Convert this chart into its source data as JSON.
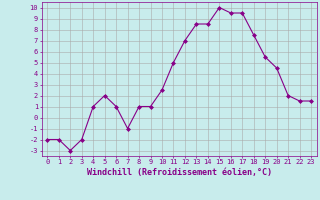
{
  "x": [
    0,
    1,
    2,
    3,
    4,
    5,
    6,
    7,
    8,
    9,
    10,
    11,
    12,
    13,
    14,
    15,
    16,
    17,
    18,
    19,
    20,
    21,
    22,
    23
  ],
  "y": [
    -2,
    -2,
    -3,
    -2,
    1,
    2,
    1,
    -1,
    1,
    1,
    2.5,
    5,
    7,
    8.5,
    8.5,
    10,
    9.5,
    9.5,
    7.5,
    5.5,
    4.5,
    2,
    1.5,
    1.5
  ],
  "line_color": "#880088",
  "marker": "D",
  "marker_size": 2,
  "background_color": "#c8ecec",
  "grid_color": "#aaaaaa",
  "xlabel": "Windchill (Refroidissement éolien,°C)",
  "xlabel_color": "#880088",
  "tick_color": "#880088",
  "ylim": [
    -3.5,
    10.5
  ],
  "xlim": [
    -0.5,
    23.5
  ],
  "yticks": [
    -3,
    -2,
    -1,
    0,
    1,
    2,
    3,
    4,
    5,
    6,
    7,
    8,
    9,
    10
  ],
  "xticks": [
    0,
    1,
    2,
    3,
    4,
    5,
    6,
    7,
    8,
    9,
    10,
    11,
    12,
    13,
    14,
    15,
    16,
    17,
    18,
    19,
    20,
    21,
    22,
    23
  ],
  "tick_fontsize": 5.0,
  "xlabel_fontsize": 6.0,
  "linewidth": 0.8
}
